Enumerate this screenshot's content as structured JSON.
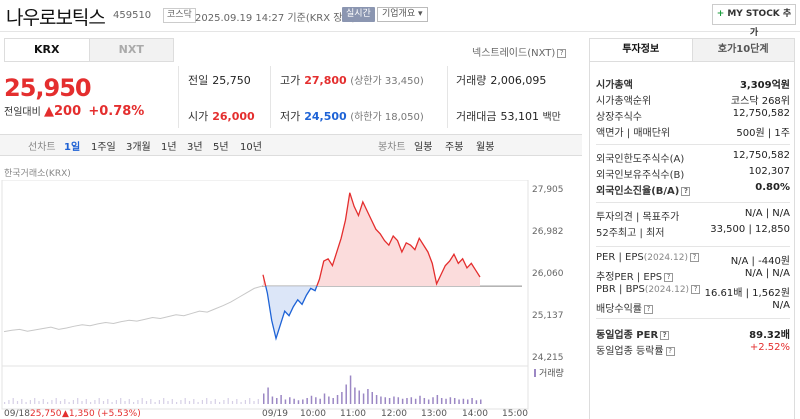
{
  "header": {
    "name": "나우로보틱스",
    "code": "459510",
    "market": "코스닥",
    "timestamp": "2025.09.19 14:27 기준(KRX 장중)",
    "realtime": "실시간",
    "overview": "기업개요 ▾",
    "mystock": "MY STOCK 추가",
    "mystock_plus": "+"
  },
  "tabs": {
    "krx": "KRX",
    "nxt": "NXT",
    "nxt_link": "넥스트레이드(NXT)",
    "help": "?"
  },
  "price": {
    "current": "25,950",
    "change_label": "전일대비",
    "change_amount": "▲200",
    "change_pct": "+0.78%"
  },
  "stats": {
    "prev_close": {
      "label": "전일",
      "value": "25,750"
    },
    "high": {
      "label": "고가",
      "value": "27,800",
      "sub": "(상한가 33,450)"
    },
    "volume": {
      "label": "거래량",
      "value": "2,006,095"
    },
    "open": {
      "label": "시가",
      "value": "26,000"
    },
    "low": {
      "label": "저가",
      "value": "24,500",
      "sub": "(하한가 18,050)"
    },
    "amount": {
      "label": "거래대금",
      "value": "53,101",
      "unit": "백만"
    }
  },
  "periods": {
    "line_label": "선차트",
    "line": [
      "1일",
      "1주일",
      "3개월",
      "1년",
      "3년",
      "5년",
      "10년"
    ],
    "candle_label": "봉차트",
    "candle": [
      "일봉",
      "주봉",
      "월봉"
    ]
  },
  "chart_source": "한국거래소(KRX)",
  "chart_data": {
    "type": "line",
    "y_ticks": [
      "27,905",
      "26,982",
      "26,060",
      "25,137",
      "24,215"
    ],
    "ylim": [
      24215,
      27905
    ],
    "baseline": 25750,
    "volume_label": "거래량",
    "x_ticks": [
      "09/18",
      "09/19",
      "10:00",
      "11:00",
      "12:00",
      "13:00",
      "14:00",
      "15:00"
    ],
    "prev_day_label": "09/18",
    "prev_day_close": "25,750",
    "prev_day_change": "▲1,350",
    "prev_day_pct": "(+5.53%)",
    "prev_day_series": [
      24750,
      24780,
      24800,
      24760,
      24790,
      24820,
      24850,
      24800,
      24830,
      24870,
      24900,
      24880,
      24920,
      24950,
      24930,
      24970,
      25000,
      24980,
      25020,
      25060,
      25040,
      25080,
      25120,
      25100,
      25150,
      25200,
      25180,
      25250,
      25320,
      25400,
      25500,
      25600,
      25700,
      25750
    ],
    "today_series": [
      26000,
      25600,
      25000,
      24600,
      24900,
      25200,
      25100,
      25300,
      25450,
      25350,
      25550,
      25700,
      25650,
      25900,
      26300,
      26350,
      26200,
      26500,
      26800,
      27200,
      27800,
      27500,
      27300,
      27600,
      27400,
      27200,
      27000,
      26900,
      26750,
      26650,
      26850,
      26750,
      26500,
      26700,
      26650,
      26550,
      26800,
      26650,
      26500,
      26250,
      25800,
      26000,
      26200,
      26300,
      26450,
      26250,
      26350,
      26150,
      26250,
      26100,
      25950
    ]
  },
  "right": {
    "tab_info": "투자정보",
    "tab_quotes": "호가10단계",
    "rows": [
      {
        "k": "시가총액",
        "v": "3,309억원",
        "bold": true
      },
      {
        "k": "시가총액순위",
        "v": "코스닥 268위"
      },
      {
        "k": "상장주식수",
        "v": "12,750,582"
      },
      {
        "k": "액면가 | 매매단위",
        "v": "500원 | 1주"
      },
      {
        "k": "외국인한도주식수(A)",
        "v": "12,750,582"
      },
      {
        "k": "외국인보유주식수(B)",
        "v": "102,307"
      },
      {
        "k": "외국인소진율(B/A)",
        "v": "0.80%",
        "bold": true,
        "help": "?"
      },
      {
        "k": "투자의견 | 목표주가",
        "v": "N/A | N/A"
      },
      {
        "k": "52주최고 | 최저",
        "v": "33,500 | 12,850"
      },
      {
        "k": "PER | EPS",
        "date": "(2024.12)",
        "v": "N/A | -440원",
        "help": "?"
      },
      {
        "k": "추정PER | EPS",
        "v": "N/A | N/A",
        "help": "?"
      },
      {
        "k": "PBR | BPS",
        "date": "(2024.12)",
        "v": "16.61배 | 1,562원",
        "help": "?"
      },
      {
        "k": "배당수익률",
        "v": "N/A",
        "help": "?"
      },
      {
        "k": "동일업종 PER",
        "v": "89.32배",
        "bold": true,
        "help": "?"
      },
      {
        "k": "동일업종 등락률",
        "v": "+2.52%",
        "red": true,
        "help": "?"
      }
    ]
  }
}
